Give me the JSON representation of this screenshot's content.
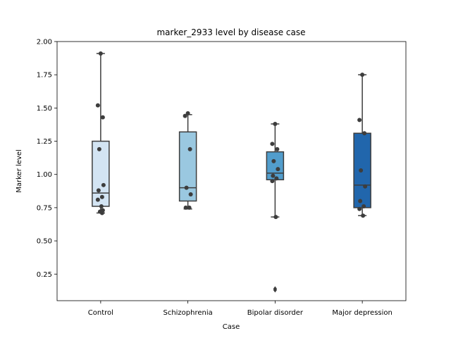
{
  "chart_data": {
    "type": "box",
    "title": "marker_2933 level by disease case",
    "xlabel": "Case",
    "ylabel": "Marker level",
    "ylim": [
      0.05,
      2.0
    ],
    "yticks": [
      0.25,
      0.5,
      0.75,
      1.0,
      1.25,
      1.5,
      1.75,
      2.0
    ],
    "ytick_labels": [
      "0.25",
      "0.50",
      "0.75",
      "1.00",
      "1.25",
      "1.50",
      "1.75",
      "2.00"
    ],
    "grid": false,
    "categories": [
      "Control",
      "Schizophrenia",
      "Bipolar disorder",
      "Major depression"
    ],
    "boxes": [
      {
        "category": "Control",
        "color": "#d3e4f3",
        "whisker_low": 0.71,
        "q1": 0.76,
        "median": 0.86,
        "q3": 1.25,
        "whisker_high": 1.91,
        "outliers": [],
        "points": [
          1.91,
          1.52,
          1.43,
          1.19,
          0.92,
          0.88,
          0.83,
          0.81,
          0.76,
          0.73,
          0.72,
          0.71
        ]
      },
      {
        "category": "Schizophrenia",
        "color": "#9ac8e0",
        "whisker_low": 0.74,
        "q1": 0.8,
        "median": 0.9,
        "q3": 1.32,
        "whisker_high": 1.45,
        "outliers": [],
        "points": [
          1.46,
          1.44,
          1.19,
          0.9,
          0.85,
          0.75,
          0.75
        ]
      },
      {
        "category": "Bipolar disorder",
        "color": "#529dcc",
        "whisker_low": 0.68,
        "q1": 0.96,
        "median": 1.01,
        "q3": 1.17,
        "whisker_high": 1.38,
        "outliers": [
          0.14,
          0.13
        ],
        "points": [
          1.38,
          1.23,
          1.19,
          1.1,
          1.04,
          0.99,
          0.97,
          0.95,
          0.68
        ]
      },
      {
        "category": "Major depression",
        "color": "#2166ac",
        "whisker_low": 0.69,
        "q1": 0.75,
        "median": 0.92,
        "q3": 1.31,
        "whisker_high": 1.75,
        "outliers": [],
        "points": [
          1.75,
          1.41,
          1.31,
          1.03,
          0.91,
          0.8,
          0.76,
          0.74,
          0.69
        ]
      }
    ]
  }
}
